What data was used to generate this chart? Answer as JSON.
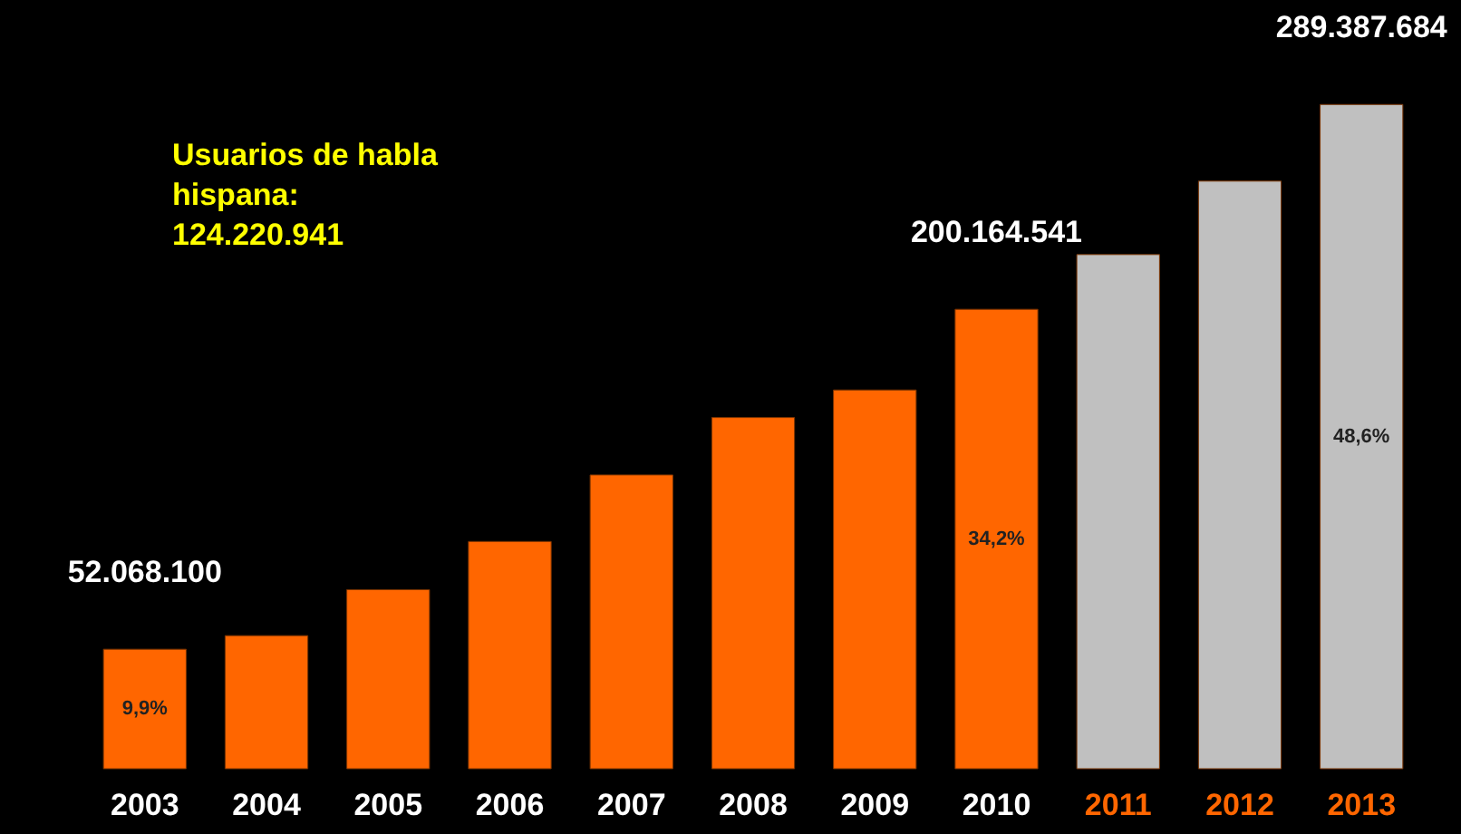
{
  "chart_data": {
    "type": "bar",
    "categories": [
      "2003",
      "2004",
      "2005",
      "2006",
      "2007",
      "2008",
      "2009",
      "2010",
      "2011",
      "2012",
      "2013"
    ],
    "values": [
      52068100,
      58000000,
      78000000,
      99000000,
      128000000,
      153000000,
      165000000,
      200164541,
      224000000,
      256000000,
      289387684
    ],
    "colors": [
      "#ff6600",
      "#ff6600",
      "#ff6600",
      "#ff6600",
      "#ff6600",
      "#ff6600",
      "#ff6600",
      "#ff6600",
      "#c0c0c0",
      "#c0c0c0",
      "#c0c0c0"
    ],
    "value_labels": [
      "52.068.100",
      null,
      null,
      null,
      null,
      null,
      null,
      "200.164.541",
      null,
      null,
      "289.387.684"
    ],
    "annotations": [
      "9,9%",
      "34,2%",
      "48,6%",
      "Usuarios de habla hispana: 124.220.941"
    ],
    "grid": false
  }
}
